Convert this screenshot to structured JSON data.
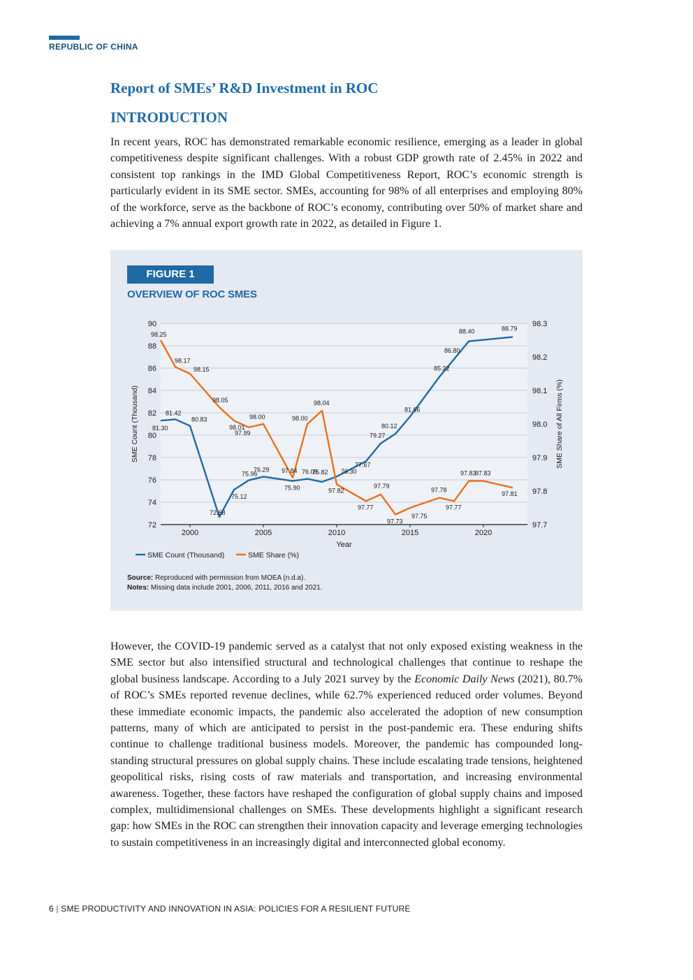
{
  "header": {
    "label": "REPUBLIC OF CHINA"
  },
  "title": "Report of SMEs’ R&D Investment in ROC",
  "section": "INTRODUCTION",
  "paragraph1": "In recent years, ROC has demonstrated remarkable economic resilience, emerging as a leader in global competitiveness despite significant challenges. With a robust GDP growth rate of 2.45% in 2022 and consistent top rankings in the IMD Global Competitiveness Report, ROC’s economic strength is particularly evident in its SME sector. SMEs, accounting for 98% of all enterprises and employing 80% of the workforce, serve as the backbone of ROC’s economy, contributing over 50% of market share and achieving a 7% annual export growth rate in 2022, as detailed in Figure 1.",
  "paragraph2": {
    "before": "However, the COVID-19 pandemic served as a catalyst that not only exposed existing weakness in the SME sector but also intensified structural and technological challenges that continue to reshape the global business landscape. According to a July 2021 survey by the ",
    "italic": "Economic Daily News",
    "after": " (2021), 80.7% of ROC’s SMEs reported revenue declines, while 62.7% experienced reduced order volumes. Beyond these immediate economic impacts, the pandemic also accelerated the adoption of new consumption patterns, many of which are anticipated to persist in the post-pandemic era. These enduring shifts continue to challenge traditional business models. Moreover, the pandemic has compounded long-standing structural pressures on global supply chains. These include escalating trade tensions, heightened geopolitical risks, rising costs of raw materials and transportation, and increasing environmental awareness. Together, these factors have reshaped the configuration of global supply chains and imposed complex, multidimensional challenges on SMEs. These developments highlight a significant research gap: how SMEs in the ROC can strengthen their innovation capacity and leverage emerging technologies to sustain competitiveness in an increasingly digital and interconnected global economy."
  },
  "figure": {
    "tag": "FIGURE 1",
    "title": "OVERVIEW OF ROC SMES",
    "source_label": "Source:",
    "source_text": " Reproduced with permission from MOEA (n.d.a).",
    "notes_label": "Notes:",
    "notes_text": " Missing data include 2001, 2006, 2011, 2016 and 2021."
  },
  "chart_data": {
    "type": "line",
    "xlabel": "Year",
    "ylabel_left": "SME Count (Thousand)",
    "ylabel_right": "SME Share of All Firms (%)",
    "xlim": [
      1998,
      2023
    ],
    "x_ticks": [
      2000,
      2005,
      2010,
      2015,
      2020
    ],
    "ylim_left": [
      72,
      90
    ],
    "y_ticks_left": [
      72,
      74,
      76,
      78,
      80,
      82,
      84,
      86,
      88,
      90
    ],
    "ylim_right": [
      97.7,
      98.3
    ],
    "y_ticks_right": [
      "97.7",
      "97.8",
      "97.9",
      "98.0",
      "98.1",
      "98.2",
      "98.3"
    ],
    "grid": true,
    "legend_position": "bottom-left",
    "series": [
      {
        "name": "SME Count (Thousand)",
        "axis": "left",
        "color": "#1f6aa5",
        "points": [
          {
            "x": 1998,
            "y": 81.3,
            "label": "81.30"
          },
          {
            "x": 1999,
            "y": 81.42,
            "label": "81.42"
          },
          {
            "x": 2000,
            "y": 80.83,
            "label": "80.83"
          },
          {
            "x": 2002,
            "y": 72.68,
            "label": "72.68"
          },
          {
            "x": 2003,
            "y": 75.12,
            "label": "75.12"
          },
          {
            "x": 2004,
            "y": 75.96,
            "label": "75.96"
          },
          {
            "x": 2005,
            "y": 76.29,
            "label": "76.29"
          },
          {
            "x": 2007,
            "y": 75.9,
            "label": "75.90"
          },
          {
            "x": 2008,
            "y": 76.09,
            "label": "76.09"
          },
          {
            "x": 2009,
            "y": 75.82,
            "label": "75.82"
          },
          {
            "x": 2010,
            "y": 76.3,
            "label": "76.30"
          },
          {
            "x": 2012,
            "y": 77.67,
            "label": "77.67"
          },
          {
            "x": 2013,
            "y": 79.27,
            "label": "79.27"
          },
          {
            "x": 2014,
            "y": 80.12,
            "label": "80.12"
          },
          {
            "x": 2015,
            "y": 81.66,
            "label": "81.66"
          },
          {
            "x": 2017,
            "y": 85.22,
            "label": "85.22"
          },
          {
            "x": 2018,
            "y": 86.8,
            "label": "86.80"
          },
          {
            "x": 2019,
            "y": 88.4,
            "label": "88.40"
          },
          {
            "x": 2022,
            "y": 88.79,
            "label": "88.79"
          }
        ]
      },
      {
        "name": "SME Share (%)",
        "axis": "right",
        "color": "#e8711c",
        "points": [
          {
            "x": 1998,
            "y": 98.25,
            "label": "98.25"
          },
          {
            "x": 1999,
            "y": 98.17,
            "label": "98.17"
          },
          {
            "x": 2000,
            "y": 98.15,
            "label": "98.15"
          },
          {
            "x": 2002,
            "y": 98.05,
            "label": "98.05"
          },
          {
            "x": 2003,
            "y": 98.01,
            "label": "98.01"
          },
          {
            "x": 2004,
            "y": 97.99,
            "label": "97.99"
          },
          {
            "x": 2005,
            "y": 98.0,
            "label": "98.00"
          },
          {
            "x": 2007,
            "y": 97.84,
            "label": "97.84"
          },
          {
            "x": 2008,
            "y": 98.0,
            "label": "98.00"
          },
          {
            "x": 2009,
            "y": 98.04,
            "label": "98.04"
          },
          {
            "x": 2010,
            "y": 97.82,
            "label": "97.82"
          },
          {
            "x": 2012,
            "y": 97.77,
            "label": "97.77"
          },
          {
            "x": 2013,
            "y": 97.79,
            "label": "97.79"
          },
          {
            "x": 2014,
            "y": 97.73,
            "label": "97.73"
          },
          {
            "x": 2015,
            "y": 97.75,
            "label": "97.75"
          },
          {
            "x": 2017,
            "y": 97.78,
            "label": "97.78"
          },
          {
            "x": 2018,
            "y": 97.77,
            "label": "97.77"
          },
          {
            "x": 2019,
            "y": 97.83,
            "label": "97.83"
          },
          {
            "x": 2020,
            "y": 97.83,
            "label": "97.83"
          },
          {
            "x": 2022,
            "y": 97.81,
            "label": "97.81"
          }
        ]
      }
    ]
  },
  "footer": {
    "page": "6",
    "sep": "|",
    "text": "SME PRODUCTIVITY AND INNOVATION IN ASIA: POLICIES FOR A RESILIENT FUTURE"
  }
}
